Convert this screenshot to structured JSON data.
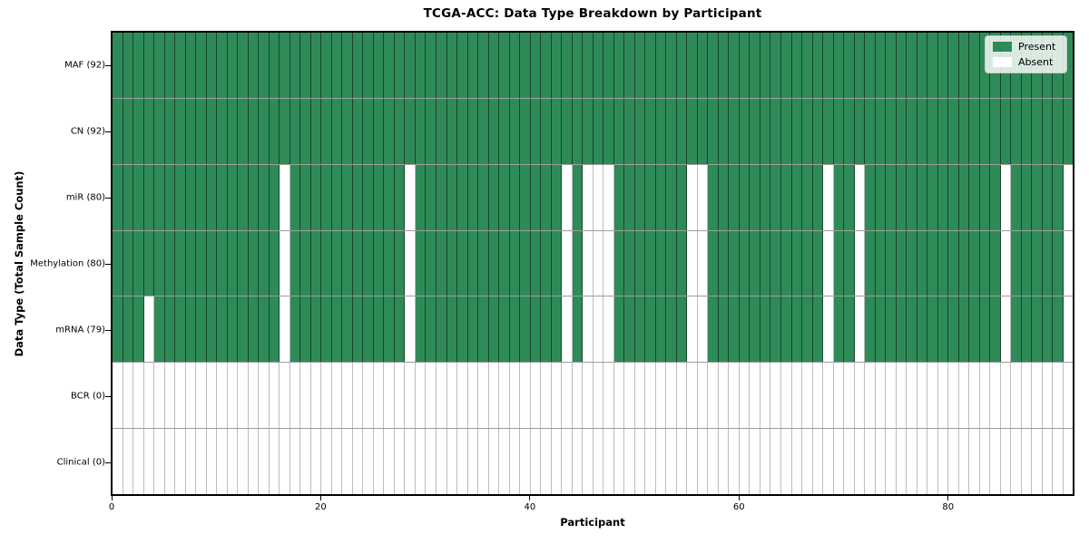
{
  "chart_data": {
    "type": "heatmap",
    "title": "TCGA-ACC: Data Type Breakdown by Participant",
    "xlabel": "Participant",
    "ylabel": "Data Type (Total Sample Count)",
    "x_ticks": [
      0,
      20,
      40,
      60,
      80
    ],
    "x_range": [
      0,
      92
    ],
    "n_participants": 92,
    "grid": true,
    "colors": {
      "present": "#2e8b57",
      "absent": "#ffffff"
    },
    "legend": {
      "position": "upper-right",
      "entries": [
        {
          "label": "Present",
          "color": "#2e8b57"
        },
        {
          "label": "Absent",
          "color": "#ffffff"
        }
      ]
    },
    "rows": [
      {
        "label": "MAF (92)",
        "data_type": "MAF",
        "total_samples": 92,
        "absent_all": false,
        "absent_participants": []
      },
      {
        "label": "CN (92)",
        "data_type": "CN",
        "total_samples": 92,
        "absent_all": false,
        "absent_participants": []
      },
      {
        "label": "miR (80)",
        "data_type": "miR",
        "total_samples": 80,
        "absent_all": false,
        "absent_participants": [
          16,
          28,
          43,
          45,
          46,
          47,
          55,
          56,
          68,
          71,
          85,
          91
        ]
      },
      {
        "label": "Methylation (80)",
        "data_type": "Methylation",
        "total_samples": 80,
        "absent_all": false,
        "absent_participants": [
          16,
          28,
          43,
          45,
          46,
          47,
          55,
          56,
          68,
          71,
          85,
          91
        ]
      },
      {
        "label": "mRNA (79)",
        "data_type": "mRNA",
        "total_samples": 79,
        "absent_all": false,
        "absent_participants": [
          3,
          16,
          28,
          43,
          45,
          46,
          47,
          55,
          56,
          68,
          71,
          85,
          91
        ]
      },
      {
        "label": "BCR (0)",
        "data_type": "BCR",
        "total_samples": 0,
        "absent_all": true,
        "absent_participants": []
      },
      {
        "label": "Clinical (0)",
        "data_type": "Clinical",
        "total_samples": 0,
        "absent_all": true,
        "absent_participants": []
      }
    ]
  }
}
